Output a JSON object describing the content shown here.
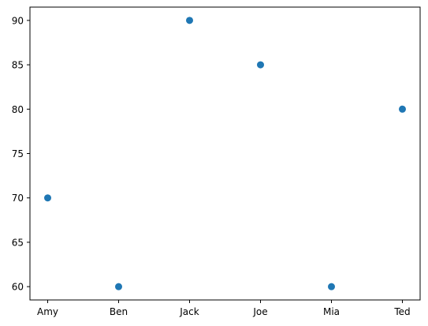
{
  "chart_data": {
    "type": "scatter",
    "title": "",
    "xlabel": "",
    "ylabel": "",
    "categories": [
      "Amy",
      "Ben",
      "Jack",
      "Joe",
      "Mia",
      "Ted"
    ],
    "series": [
      {
        "values": [
          70,
          60,
          90,
          85,
          60,
          80
        ],
        "color": "#1f77b4"
      }
    ],
    "ylim": [
      58.5,
      91.5
    ],
    "yticks": [
      60,
      65,
      70,
      75,
      80,
      85,
      90
    ],
    "grid": false
  }
}
